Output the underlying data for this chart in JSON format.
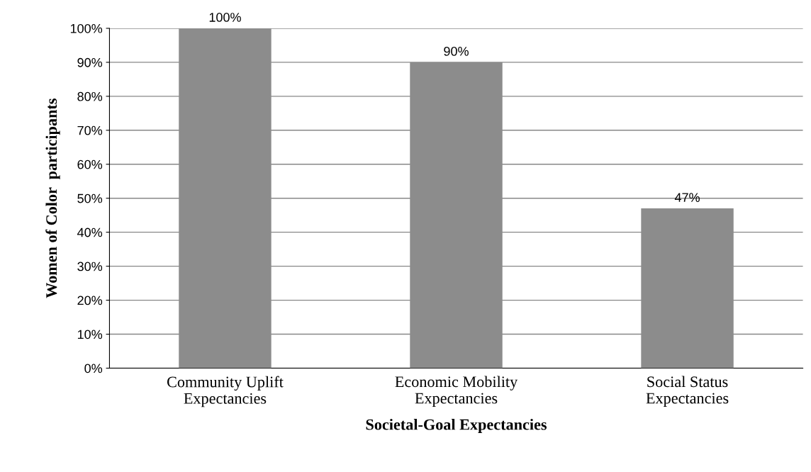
{
  "chart_data": {
    "type": "bar",
    "xlabel": "Societal-Goal Expectancies",
    "ylabel": "Women of Color  participants",
    "categories": [
      "Community Uplift\nExpectancies",
      "Economic Mobility\nExpectancies",
      "Social Status\nExpectancies"
    ],
    "values": [
      100,
      90,
      47
    ],
    "value_labels": [
      "100%",
      "90%",
      "47%"
    ],
    "color": "#8c8c8c",
    "ylim": [
      0,
      100
    ],
    "yticks": [
      {
        "value": 0,
        "label": "0%"
      },
      {
        "value": 10,
        "label": "10%"
      },
      {
        "value": 20,
        "label": "20%"
      },
      {
        "value": 30,
        "label": "30%"
      },
      {
        "value": 40,
        "label": "40%"
      },
      {
        "value": 50,
        "label": "50%"
      },
      {
        "value": 60,
        "label": "60%"
      },
      {
        "value": 70,
        "label": "70%"
      },
      {
        "value": 80,
        "label": "80%"
      },
      {
        "value": 90,
        "label": "90%"
      },
      {
        "value": 100,
        "label": "100%"
      }
    ],
    "grid": "y",
    "legend": false
  }
}
